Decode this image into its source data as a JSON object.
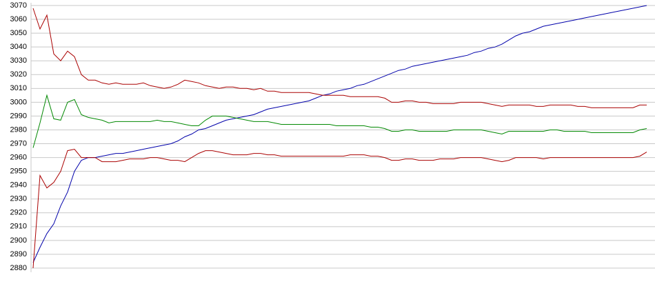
{
  "chart_data": {
    "type": "line",
    "categories": [
      null,
      null,
      null,
      null,
      null,
      null,
      null,
      null,
      null,
      null,
      null,
      null,
      null,
      null,
      null,
      null,
      null,
      null,
      null,
      null,
      null,
      null,
      null,
      null,
      null,
      null,
      null,
      null,
      null,
      null,
      null,
      null,
      null,
      null,
      null,
      null,
      null,
      null,
      null,
      null,
      null,
      null,
      null,
      null,
      null,
      null,
      null,
      null,
      null,
      null,
      null,
      null,
      null,
      null,
      null,
      null,
      null,
      null,
      null,
      null,
      null,
      null,
      null,
      null,
      null,
      null,
      null,
      null,
      null,
      null,
      null,
      null,
      null,
      null,
      null,
      null,
      null,
      null,
      null,
      null,
      null,
      null,
      null,
      null,
      null,
      null,
      null,
      null,
      null,
      null
    ],
    "series": [
      {
        "color": "#0000aa",
        "values": [
          2884,
          2895,
          2905,
          2912,
          2925,
          2935,
          2950,
          2958,
          2960,
          2960,
          2961,
          2962,
          2963,
          2963,
          2964,
          2965,
          2966,
          2967,
          2968,
          2969,
          2970,
          2972,
          2975,
          2977,
          2980,
          2981,
          2983,
          2985,
          2987,
          2988,
          2989,
          2990,
          2991,
          2993,
          2995,
          2996,
          2997,
          2998,
          2999,
          3000,
          3001,
          3003,
          3005,
          3006,
          3008,
          3009,
          3010,
          3012,
          3013,
          3015,
          3017,
          3019,
          3021,
          3023,
          3024,
          3026,
          3027,
          3028,
          3029,
          3030,
          3031,
          3032,
          3033,
          3034,
          3036,
          3037,
          3039,
          3040,
          3042,
          3045,
          3048,
          3050,
          3051,
          3053,
          3055,
          3056,
          3057,
          3058,
          3059,
          3060,
          3061,
          3062,
          3063,
          3064,
          3065,
          3066,
          3067,
          3068,
          3069,
          3070
        ]
      },
      {
        "color": "#aa0000",
        "values": [
          3068,
          3053,
          3063,
          3035,
          3030,
          3037,
          3033,
          3020,
          3016,
          3016,
          3014,
          3013,
          3014,
          3013,
          3013,
          3013,
          3014,
          3012,
          3011,
          3010,
          3011,
          3013,
          3016,
          3015,
          3014,
          3012,
          3011,
          3010,
          3011,
          3011,
          3010,
          3010,
          3009,
          3010,
          3008,
          3008,
          3007,
          3007,
          3007,
          3007,
          3007,
          3006,
          3005,
          3005,
          3005,
          3005,
          3004,
          3004,
          3004,
          3004,
          3004,
          3003,
          3000,
          3000,
          3001,
          3001,
          3000,
          3000,
          2999,
          2999,
          2999,
          2999,
          3000,
          3000,
          3000,
          3000,
          2999,
          2998,
          2997,
          2998,
          2998,
          2998,
          2998,
          2997,
          2997,
          2998,
          2998,
          2998,
          2998,
          2997,
          2997,
          2996,
          2996,
          2996,
          2996,
          2996,
          2996,
          2996,
          2998,
          2998
        ]
      },
      {
        "color": "#008800",
        "values": [
          2967,
          2985,
          3005,
          2988,
          2987,
          3000,
          3002,
          2991,
          2989,
          2988,
          2987,
          2985,
          2986,
          2986,
          2986,
          2986,
          2986,
          2986,
          2987,
          2986,
          2986,
          2985,
          2984,
          2983,
          2983,
          2987,
          2990,
          2990,
          2990,
          2989,
          2988,
          2987,
          2986,
          2986,
          2986,
          2985,
          2984,
          2984,
          2984,
          2984,
          2984,
          2984,
          2984,
          2984,
          2983,
          2983,
          2983,
          2983,
          2983,
          2982,
          2982,
          2981,
          2979,
          2979,
          2980,
          2980,
          2979,
          2979,
          2979,
          2979,
          2979,
          2980,
          2980,
          2980,
          2980,
          2980,
          2979,
          2978,
          2977,
          2979,
          2979,
          2979,
          2979,
          2979,
          2979,
          2980,
          2980,
          2979,
          2979,
          2979,
          2979,
          2978,
          2978,
          2978,
          2978,
          2978,
          2978,
          2978,
          2980,
          2981
        ]
      },
      {
        "color": "#aa0000",
        "values": [
          2880,
          2947,
          2938,
          2942,
          2950,
          2965,
          2966,
          2960,
          2960,
          2960,
          2957,
          2957,
          2957,
          2958,
          2959,
          2959,
          2959,
          2960,
          2960,
          2959,
          2958,
          2958,
          2957,
          2960,
          2963,
          2965,
          2965,
          2964,
          2963,
          2962,
          2962,
          2962,
          2963,
          2963,
          2962,
          2962,
          2961,
          2961,
          2961,
          2961,
          2961,
          2961,
          2961,
          2961,
          2961,
          2961,
          2962,
          2962,
          2962,
          2961,
          2961,
          2960,
          2958,
          2958,
          2959,
          2959,
          2958,
          2958,
          2958,
          2959,
          2959,
          2959,
          2960,
          2960,
          2960,
          2960,
          2959,
          2958,
          2957,
          2958,
          2960,
          2960,
          2960,
          2960,
          2959,
          2960,
          2960,
          2960,
          2960,
          2960,
          2960,
          2960,
          2960,
          2960,
          2960,
          2960,
          2960,
          2960,
          2961,
          2964
        ]
      }
    ],
    "ylim": [
      2880,
      3070
    ],
    "yticks": [
      2880,
      2890,
      2900,
      2910,
      2920,
      2930,
      2940,
      2950,
      2960,
      2970,
      2980,
      2990,
      3000,
      3010,
      3020,
      3030,
      3040,
      3050,
      3060,
      3070
    ],
    "grid": true
  }
}
